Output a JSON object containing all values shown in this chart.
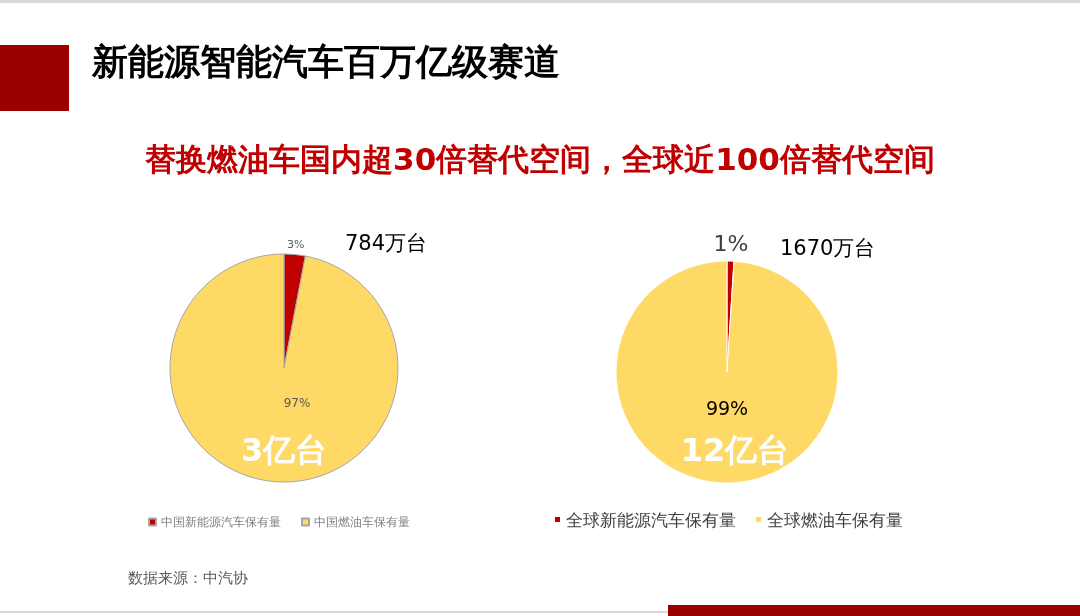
{
  "chart_data": [
    {
      "type": "pie",
      "title": "新能源智能汽车百万亿级赛道",
      "subtitle": "替换燃油车国内超30倍替代空间，全球近100倍替代空间",
      "categories": [
        "中国新能源汽车保有量",
        "中国燃油车保有量"
      ],
      "values": [
        3,
        97
      ],
      "colors": [
        "#c00000",
        "#ffd966"
      ],
      "value_labels": [
        "3%",
        "97%"
      ],
      "legend": "bottom",
      "annotations": [
        "784万台",
        "3亿台",
        "数据来源：中汽协"
      ]
    },
    {
      "type": "pie",
      "categories": [
        "全球新能源汽车保有量",
        "全球燃油车保有量"
      ],
      "values": [
        1,
        99
      ],
      "colors": [
        "#c00000",
        "#ffd966"
      ],
      "value_labels": [
        "1%",
        "99%"
      ],
      "legend": "bottom",
      "annotations": [
        "1670万台",
        "12亿台"
      ]
    }
  ]
}
